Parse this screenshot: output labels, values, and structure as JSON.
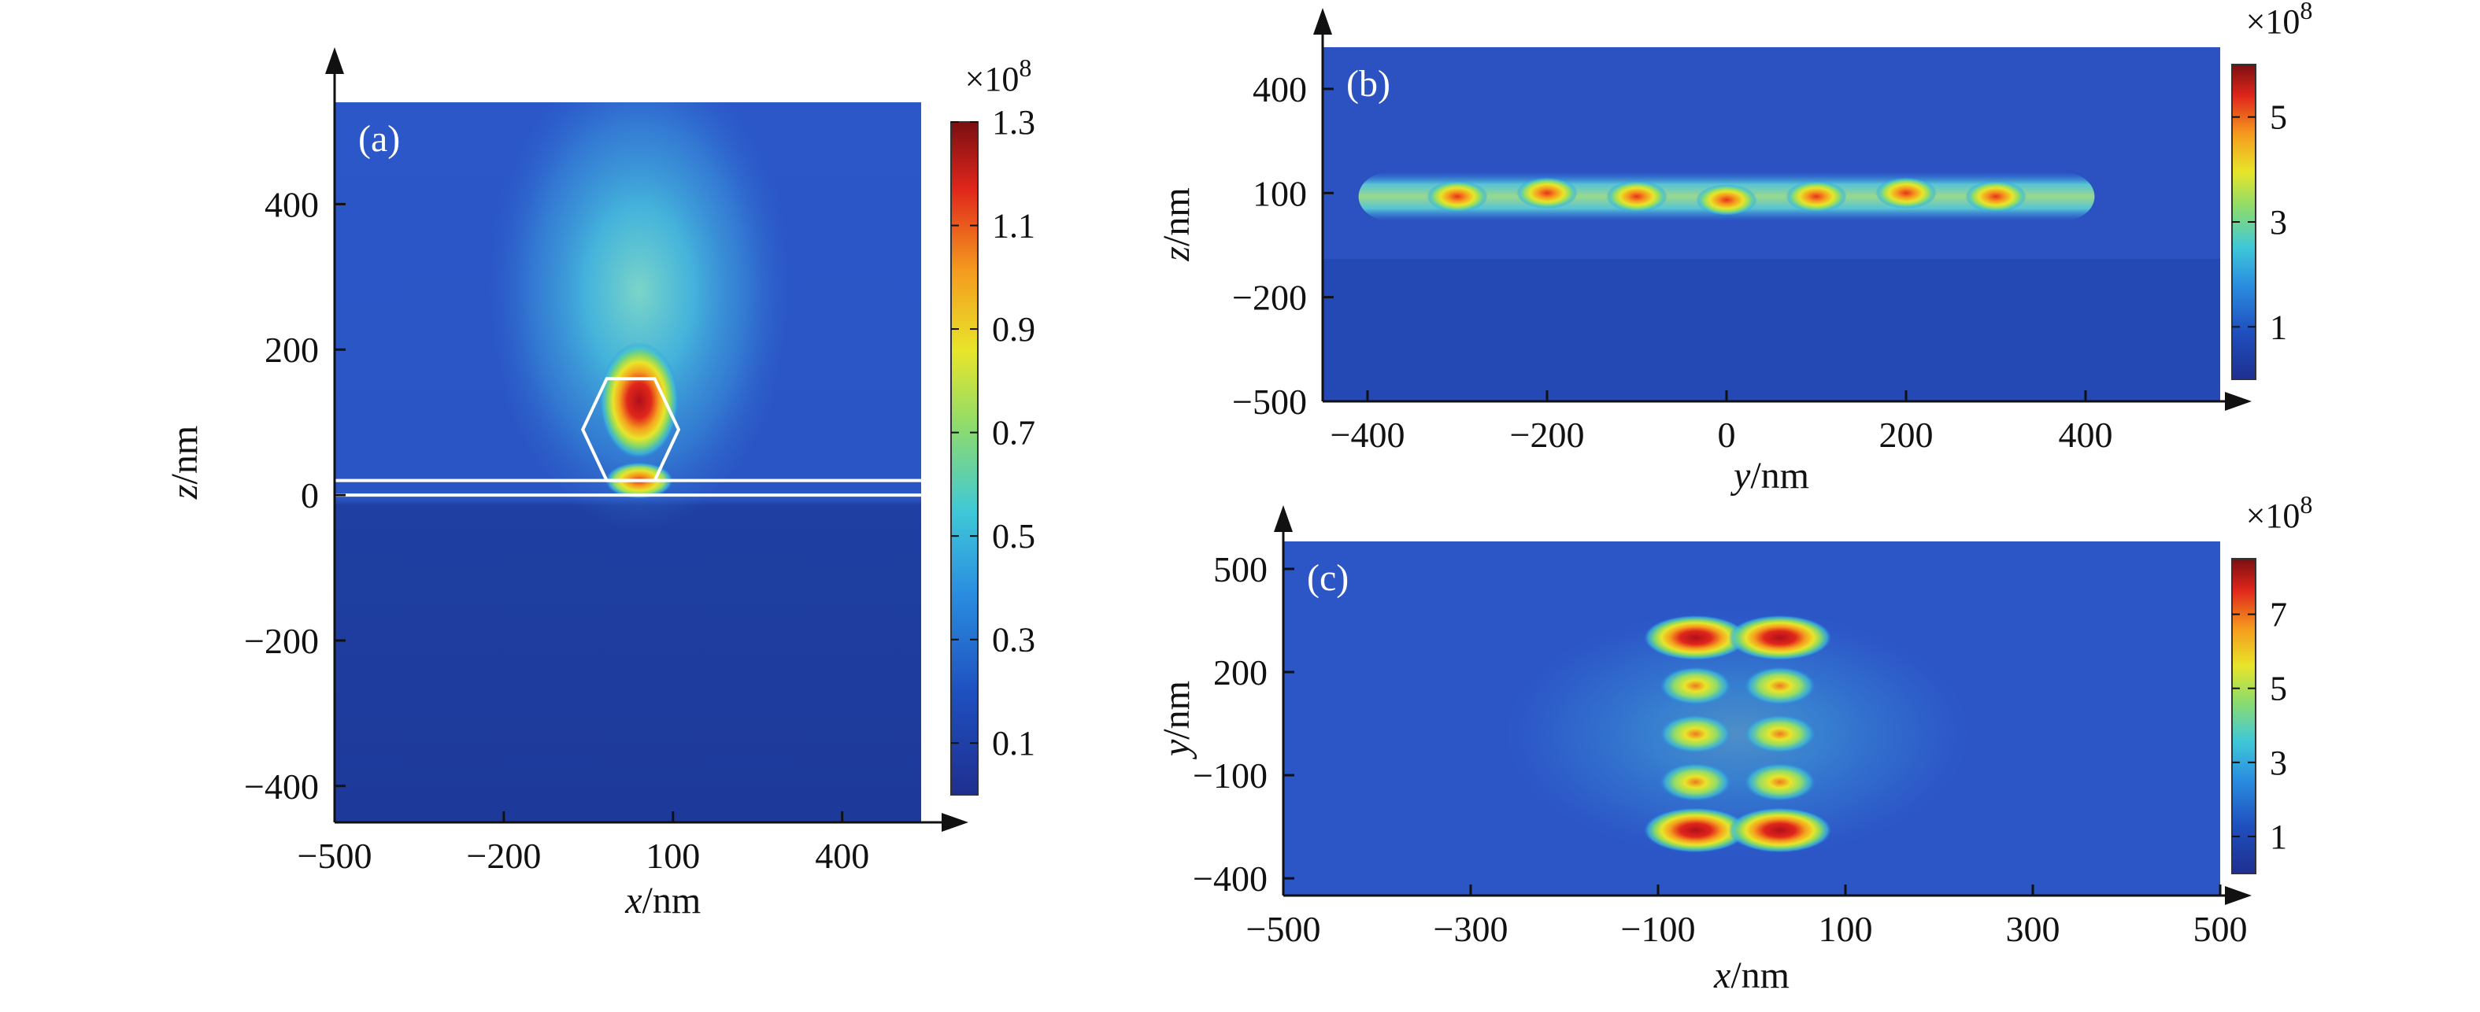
{
  "chart_data": [
    {
      "type": "heatmap",
      "panel_label": "(a)",
      "xlabel_var": "x",
      "xlabel_unit": "/nm",
      "ylabel_var": "z",
      "ylabel_unit": "/nm",
      "x_ticks": [
        "−500",
        "−200",
        "100",
        "400"
      ],
      "x_tick_values": [
        -500,
        -200,
        100,
        400
      ],
      "y_ticks": [
        "400",
        "200",
        "0",
        "−200",
        "−400"
      ],
      "y_tick_values": [
        400,
        200,
        0,
        -200,
        -400
      ],
      "xlim": [
        -500,
        540
      ],
      "ylim": [
        -450,
        540
      ],
      "colorbar": {
        "multiplier": "×10",
        "exponent": "8",
        "ticks": [
          "1.3",
          "1.1",
          "0.9",
          "0.7",
          "0.5",
          "0.3",
          "0.1"
        ],
        "tick_values": [
          1.3,
          1.1,
          0.9,
          0.7,
          0.5,
          0.3,
          0.1
        ],
        "range": [
          0.0,
          1.3
        ]
      },
      "hotspots": [
        {
          "x": 40,
          "y": 130,
          "rx": 70,
          "ry": 80,
          "value": 1.3
        },
        {
          "x": 40,
          "y": 20,
          "rx": 60,
          "ry": 25,
          "value": 1.0
        }
      ],
      "glow": {
        "x": 40,
        "y": 280,
        "rx": 270,
        "ry": 330,
        "value": 0.6
      },
      "hexagon": {
        "x_min": -60,
        "x_max": 110,
        "y_min": 20,
        "y_max": 160
      },
      "substrate_lines_z": [
        0,
        20
      ]
    },
    {
      "type": "heatmap",
      "panel_label": "(b)",
      "xlabel_var": "y",
      "xlabel_unit": "/nm",
      "ylabel_var": "z",
      "ylabel_unit": "/nm",
      "x_ticks": [
        "−400",
        "−200",
        "0",
        "200",
        "400"
      ],
      "x_tick_values": [
        -400,
        -200,
        0,
        200,
        400
      ],
      "y_ticks": [
        "400",
        "100",
        "−200",
        "−500"
      ],
      "y_tick_values": [
        400,
        100,
        -200,
        -500
      ],
      "xlim": [
        -450,
        550
      ],
      "ylim": [
        -500,
        520
      ],
      "colorbar": {
        "multiplier": "×10",
        "exponent": "8",
        "ticks": [
          "5",
          "3",
          "1"
        ],
        "tick_values": [
          5,
          3,
          1
        ],
        "range": [
          0,
          6
        ]
      },
      "band": {
        "x_min": -350,
        "x_max": 350,
        "y": 90,
        "half_height": 70,
        "value": 2.5
      },
      "hotspots": [
        {
          "x": -300,
          "y": 90,
          "value": 5
        },
        {
          "x": -200,
          "y": 100,
          "value": 5
        },
        {
          "x": -100,
          "y": 90,
          "value": 4.5
        },
        {
          "x": 0,
          "y": 80,
          "value": 4.5
        },
        {
          "x": 100,
          "y": 90,
          "value": 4.5
        },
        {
          "x": 200,
          "y": 100,
          "value": 5
        },
        {
          "x": 300,
          "y": 90,
          "value": 5
        }
      ]
    },
    {
      "type": "heatmap",
      "panel_label": "(c)",
      "xlabel_var": "x",
      "xlabel_unit": "/nm",
      "ylabel_var": "y",
      "ylabel_unit": "/nm",
      "x_ticks": [
        "−500",
        "−300",
        "−100",
        "100",
        "300",
        "500"
      ],
      "x_tick_values": [
        -500,
        -300,
        -100,
        100,
        300,
        500
      ],
      "y_ticks": [
        "500",
        "200",
        "−100",
        "−400"
      ],
      "y_tick_values": [
        500,
        200,
        -100,
        -400
      ],
      "xlim": [
        -500,
        500
      ],
      "ylim": [
        -450,
        580
      ],
      "colorbar": {
        "multiplier": "×10",
        "exponent": "8",
        "ticks": [
          "7",
          "5",
          "3",
          "1"
        ],
        "tick_values": [
          7,
          5,
          3,
          1
        ],
        "range": [
          0,
          8.5
        ]
      },
      "hotspots": [
        {
          "x": -60,
          "y": 300,
          "value": 8
        },
        {
          "x": 30,
          "y": 300,
          "value": 8
        },
        {
          "x": -60,
          "y": 160,
          "value": 5
        },
        {
          "x": 30,
          "y": 160,
          "value": 5
        },
        {
          "x": -60,
          "y": 20,
          "value": 4.5
        },
        {
          "x": 30,
          "y": 20,
          "value": 4.5
        },
        {
          "x": -60,
          "y": -120,
          "value": 5
        },
        {
          "x": 30,
          "y": -120,
          "value": 5
        },
        {
          "x": -60,
          "y": -260,
          "value": 8
        },
        {
          "x": 30,
          "y": -260,
          "value": 8
        }
      ]
    }
  ]
}
